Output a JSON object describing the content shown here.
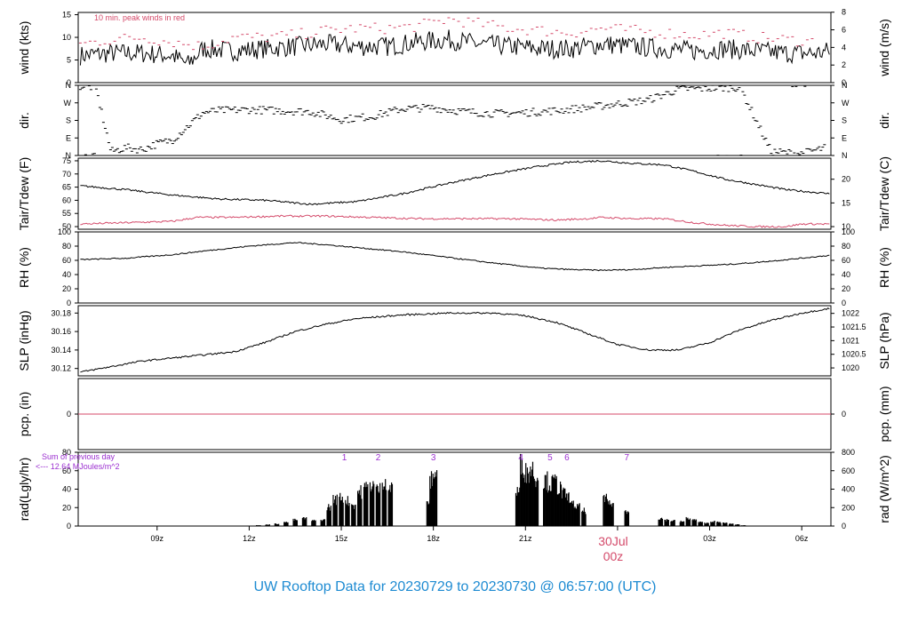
{
  "chart_data": {
    "type": "line",
    "title": "UW Rooftop Data for 20230729  to  20230730 @ 06:57:00  (UTC)",
    "date_label": "30Jul",
    "date_sublabel": "00z",
    "x": {
      "unit": "hours since 20230729 00z",
      "range": [
        6.43,
        30.95
      ],
      "ticks": [
        {
          "t": 9,
          "label": "09z"
        },
        {
          "t": 12,
          "label": "12z"
        },
        {
          "t": 15,
          "label": "15z"
        },
        {
          "t": 18,
          "label": "18z"
        },
        {
          "t": 21,
          "label": "21z"
        },
        {
          "t": 24,
          "label": ""
        },
        {
          "t": 27,
          "label": "03z"
        },
        {
          "t": 30,
          "label": "06z"
        }
      ]
    },
    "panels": [
      {
        "id": "wind",
        "ylabel_left": "wind (kts)",
        "ylabel_right": "wind (m/s)",
        "ylim": [
          0,
          15.5
        ],
        "left_ticks": [
          "0",
          "5",
          "10",
          "15"
        ],
        "right_ticks": [
          "0",
          "2",
          "4",
          "6",
          "8"
        ],
        "annotation": "10 min. peak winds in red",
        "series": [
          {
            "kind": "line",
            "color": "#000000",
            "t": [
              6.5,
              7.5,
              8.5,
              9.5,
              10.0,
              10.5,
              11.5,
              12.5,
              13.5,
              14.5,
              15.5,
              16.5,
              17.5,
              18.5,
              19.5,
              20.5,
              21.5,
              22.5,
              23.5,
              24.5,
              25.5,
              26.5,
              27.5,
              28.5,
              29.5,
              30.5,
              30.9
            ],
            "v": [
              6.0,
              6.5,
              6.5,
              6.0,
              4.0,
              7.5,
              7.0,
              7.5,
              8.0,
              8.5,
              8.0,
              8.0,
              9.0,
              9.5,
              8.5,
              8.0,
              7.5,
              7.5,
              8.5,
              8.0,
              7.5,
              7.0,
              7.5,
              7.0,
              6.5,
              6.5,
              7.0
            ]
          },
          {
            "kind": "dots",
            "color": "#d44a6a",
            "t": [
              6.5,
              7.5,
              8.5,
              9.5,
              10.5,
              11.5,
              12.5,
              13.5,
              14.5,
              15.5,
              16.5,
              17.5,
              18.5,
              19.5,
              20.5,
              21.5,
              22.5,
              23.5,
              24.5,
              25.5,
              26.5,
              27.5,
              28.5,
              29.5,
              30.5
            ],
            "v": [
              8.5,
              9.5,
              10.0,
              9.0,
              8.0,
              10.0,
              10.0,
              10.5,
              11.5,
              12.0,
              12.0,
              12.5,
              14.0,
              13.0,
              12.0,
              11.5,
              11.0,
              12.0,
              11.5,
              11.0,
              10.5,
              11.0,
              10.0,
              9.5,
              9.0
            ]
          }
        ]
      },
      {
        "id": "dir",
        "ylabel_left": "dir.",
        "ylabel_right": "dir.",
        "ylim": [
          0,
          360
        ],
        "left_ticks": [
          "N",
          "E",
          "S",
          "W",
          "N"
        ],
        "right_ticks": [
          "N",
          "E",
          "S",
          "W",
          "N"
        ],
        "series": [
          {
            "kind": "dots",
            "color": "#000000",
            "t": [
              6.5,
              7.0,
              7.5,
              8.0,
              8.5,
              9.0,
              9.5,
              10.0,
              10.5,
              11.0,
              12.0,
              13.0,
              14.0,
              15.0,
              16.0,
              17.0,
              18.0,
              19.0,
              20.0,
              21.0,
              22.0,
              23.0,
              24.0,
              25.0,
              26.0,
              27.0,
              28.0,
              29.0,
              30.0,
              30.8
            ],
            "v": [
              355,
              350,
              20,
              40,
              30,
              60,
              80,
              150,
              220,
              230,
              235,
              230,
              225,
              185,
              200,
              240,
              245,
              225,
              215,
              220,
              230,
              245,
              265,
              285,
              340,
              345,
              350,
              20,
              10,
              40
            ]
          }
        ]
      },
      {
        "id": "temp",
        "ylabel_left": "Tair/Tdew (F)",
        "ylabel_right": "Tair/Tdew (C)",
        "ylim": [
          49,
          76
        ],
        "left_ticks": [
          "50",
          "55",
          "60",
          "65",
          "70",
          "75"
        ],
        "right_ticks": [
          "10",
          "15",
          "20"
        ],
        "series": [
          {
            "kind": "line",
            "color": "#000000",
            "name": "Tair",
            "t": [
              6.5,
              8.0,
              9.5,
              11.0,
              12.5,
              14.0,
              15.5,
              17.0,
              18.5,
              20.0,
              21.5,
              22.5,
              23.5,
              24.5,
              25.5,
              26.5,
              27.5,
              28.5,
              29.5,
              30.9
            ],
            "v": [
              65.5,
              64.0,
              62.0,
              60.5,
              60.0,
              58.5,
              59.5,
              62.5,
              66.5,
              70.0,
              73.0,
              74.5,
              75.0,
              74.0,
              73.5,
              71.0,
              68.0,
              66.0,
              64.0,
              62.5
            ]
          },
          {
            "kind": "line",
            "color": "#d44a6a",
            "name": "Tdew",
            "t": [
              6.5,
              8.0,
              9.5,
              10.3,
              11.5,
              13.0,
              14.5,
              16.0,
              17.5,
              19.0,
              20.5,
              22.0,
              23.0,
              23.5,
              24.5,
              25.5,
              26.5,
              27.5,
              28.5,
              29.5,
              30.0,
              30.9
            ],
            "v": [
              51.0,
              51.5,
              52.0,
              53.5,
              53.5,
              54.0,
              54.0,
              53.5,
              53.0,
              53.0,
              53.0,
              52.5,
              53.0,
              53.5,
              53.0,
              53.0,
              51.5,
              50.5,
              50.0,
              50.0,
              51.0,
              51.0
            ]
          }
        ]
      },
      {
        "id": "rh",
        "ylabel_left": "RH (%)",
        "ylabel_right": "RH (%)",
        "ylim": [
          0,
          100
        ],
        "left_ticks": [
          "0",
          "20",
          "40",
          "60",
          "80",
          "100"
        ],
        "right_ticks": [
          "0",
          "20",
          "40",
          "60",
          "80",
          "100"
        ],
        "series": [
          {
            "kind": "line",
            "color": "#000000",
            "t": [
              6.5,
              8.0,
              9.5,
              10.5,
              12.0,
              13.5,
              14.5,
              15.5,
              17.0,
              18.5,
              20.0,
              21.5,
              22.5,
              23.5,
              24.5,
              25.5,
              26.5,
              27.5,
              28.5,
              29.5,
              30.9
            ],
            "v": [
              61,
              63,
              68,
              73,
              80,
              85,
              82,
              78,
              72,
              64,
              56,
              49,
              47,
              46,
              47,
              50,
              52,
              54,
              57,
              61,
              67
            ]
          }
        ]
      },
      {
        "id": "slp",
        "ylabel_left": "SLP (inHg)",
        "ylabel_right": "SLP (hPa)",
        "ylim": [
          30.112,
          30.188
        ],
        "left_ticks": [
          "30.12",
          "30.14",
          "30.16",
          "30.18"
        ],
        "right_ticks": [
          "1020",
          "1020.5",
          "1021",
          "1021.5",
          "1022"
        ],
        "series": [
          {
            "kind": "line",
            "color": "#000000",
            "t": [
              6.5,
              7.5,
              8.5,
              10.0,
              11.5,
              12.5,
              13.5,
              14.5,
              15.5,
              17.0,
              18.5,
              20.0,
              21.0,
              22.0,
              23.0,
              24.0,
              25.0,
              26.0,
              27.0,
              28.0,
              29.0,
              30.0,
              30.9
            ],
            "v": [
              30.116,
              30.122,
              30.128,
              30.133,
              30.138,
              30.148,
              30.16,
              30.168,
              30.174,
              30.178,
              30.18,
              30.18,
              30.177,
              30.17,
              30.158,
              30.146,
              30.14,
              30.14,
              30.148,
              30.162,
              30.172,
              30.18,
              30.185
            ]
          }
        ]
      },
      {
        "id": "pcp",
        "ylabel_left": "pcp. (in)",
        "ylabel_right": "pcp. (mm)",
        "ylim": [
          -1,
          1
        ],
        "left_ticks": [
          "0"
        ],
        "right_ticks": [
          "0"
        ],
        "series": [
          {
            "kind": "line",
            "color": "#d44a6a",
            "t": [
              6.43,
              30.95
            ],
            "v": [
              0,
              0
            ]
          }
        ]
      },
      {
        "id": "rad",
        "ylabel_left": "rad(Lgly/hr)",
        "ylabel_right": "rad (W/m^2)",
        "ylim": [
          0,
          80
        ],
        "left_ticks": [
          "0",
          "20",
          "40",
          "60",
          "80"
        ],
        "right_ticks": [
          "0",
          "200",
          "400",
          "600",
          "800"
        ],
        "annotation_line1": "Sum of previous day",
        "annotation_line2": "<--- 12.64 MJoules/m^2",
        "events": [
          {
            "t": 15.1,
            "label": "1"
          },
          {
            "t": 16.2,
            "label": "2"
          },
          {
            "t": 18.0,
            "label": "3"
          },
          {
            "t": 20.85,
            "label": "4"
          },
          {
            "t": 21.8,
            "label": "5"
          },
          {
            "t": 22.35,
            "label": "6"
          },
          {
            "t": 24.3,
            "label": "7"
          }
        ],
        "series": [
          {
            "kind": "bars",
            "color": "#000000",
            "t": [
              12.3,
              12.6,
              12.9,
              13.2,
              13.5,
              13.8,
              14.1,
              14.4,
              14.6,
              14.8,
              15.0,
              15.2,
              15.4,
              15.6,
              15.8,
              16.0,
              16.2,
              16.4,
              16.6,
              17.85,
              17.95,
              18.05,
              20.75,
              20.9,
              21.05,
              21.2,
              21.35,
              21.65,
              21.8,
              21.95,
              22.1,
              22.25,
              22.4,
              22.55,
              22.7,
              22.9,
              23.6,
              23.7,
              23.8,
              24.3,
              25.4,
              25.6,
              25.8,
              26.1,
              26.3,
              26.5,
              26.7,
              26.9,
              27.1,
              27.3,
              27.5,
              27.7,
              27.9,
              28.1,
              28.4
            ],
            "v": [
              1,
              2,
              3,
              5,
              8,
              10,
              7,
              8,
              25,
              35,
              38,
              33,
              28,
              45,
              50,
              55,
              48,
              60,
              50,
              32,
              60,
              68,
              45,
              80,
              70,
              75,
              65,
              60,
              55,
              58,
              50,
              42,
              38,
              28,
              25,
              20,
              35,
              30,
              28,
              20,
              10,
              8,
              7,
              6,
              10,
              8,
              5,
              4,
              6,
              5,
              4,
              3,
              2,
              1,
              0.5
            ]
          }
        ]
      }
    ]
  }
}
